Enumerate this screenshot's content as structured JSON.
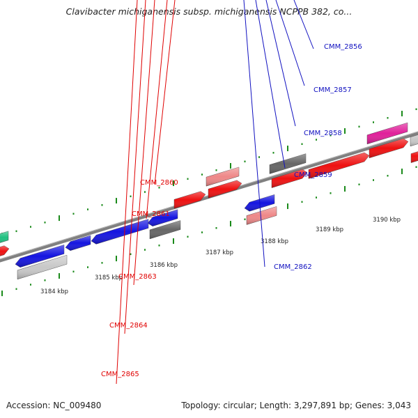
{
  "title": "Clavibacter michiganensis subsp. michiganensis NCPPB 382, co...",
  "footer": {
    "accession": "Accession: NC_009480",
    "summary": "Topology: circular; Length: 3,297,891 bp; Genes: 3,043"
  },
  "colors": {
    "forward_label": "#e00000",
    "reverse_label": "#1010c0",
    "backbone": "#808080",
    "tick": "#1a8a1a"
  },
  "scale_labels": [
    "3184 kbp",
    "3185 kbp",
    "3186 kbp",
    "3187 kbp",
    "3188 kbp",
    "3189 kbp",
    "3190 kbp"
  ],
  "genes": [
    {
      "label": "",
      "strand": "+",
      "color": "#20c080"
    },
    {
      "label": "",
      "strand": "+",
      "color": "#ee1111"
    },
    {
      "label": "CMM_2856",
      "strand": "-",
      "color": "#1515e0"
    },
    {
      "label": "",
      "strand": "-",
      "color": "#c8c8c8"
    },
    {
      "label": "CMM_2857",
      "strand": "-",
      "color": "#1515e0"
    },
    {
      "label": "CMM_2858",
      "strand": "-",
      "color": "#1515e0"
    },
    {
      "label": "CMM_2859",
      "strand": "-",
      "color": "#1515e0"
    },
    {
      "label": "",
      "strand": "-",
      "color": "#666666"
    },
    {
      "label": "CMM_2860",
      "strand": "+",
      "color": "#ee1111"
    },
    {
      "label": "CMM_2861",
      "strand": "+",
      "color": "#ee1111"
    },
    {
      "label": "",
      "strand": "+",
      "color": "#ee8888"
    },
    {
      "label": "CMM_2862",
      "strand": "-",
      "color": "#1515e0"
    },
    {
      "label": "",
      "strand": "-",
      "color": "#ee8888"
    },
    {
      "label": "CMM_2863",
      "strand": "+",
      "color": "#ee1111"
    },
    {
      "label": "",
      "strand": "+",
      "color": "#666666"
    },
    {
      "label": "CMM_2864",
      "strand": "+",
      "color": "#ee1111"
    },
    {
      "label": "CMM_2865",
      "strand": "+",
      "color": "#ee1111"
    },
    {
      "label": "",
      "strand": "+",
      "color": "#e0209a"
    },
    {
      "label": "",
      "strand": "+",
      "color": "#ee1111"
    },
    {
      "label": "",
      "strand": "+",
      "color": "#c8c8c8"
    }
  ]
}
